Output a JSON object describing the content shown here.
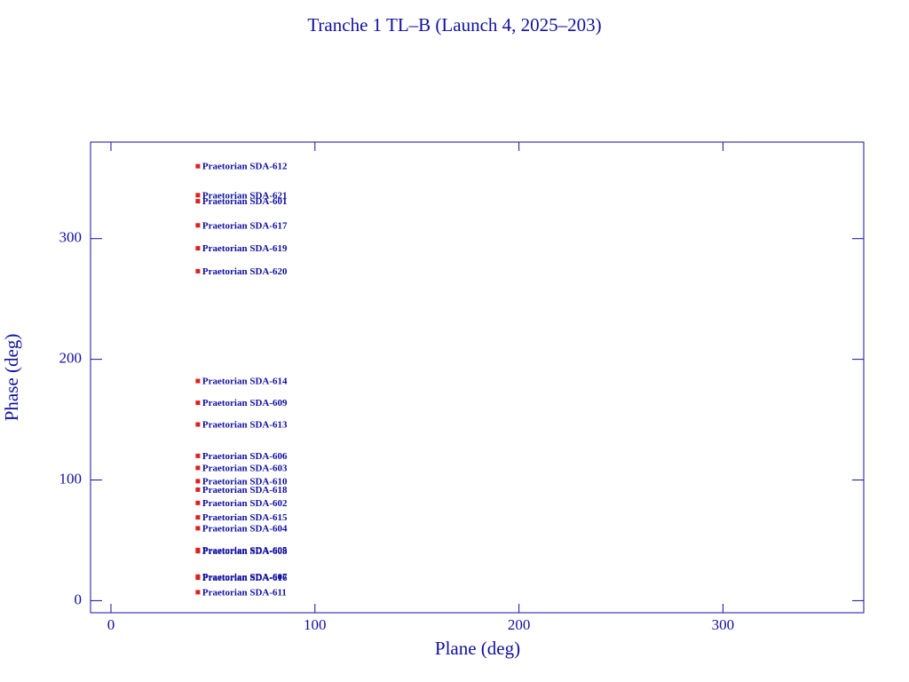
{
  "chart_data": {
    "type": "scatter",
    "title": "Tranche 1 TL–B (Launch 4, 2025–203)",
    "xlabel": "Plane (deg)",
    "ylabel": "Phase (deg)",
    "labels": [
      "Praetorian SDA-612",
      "Praetorian SDA-621",
      "Praetorian SDA-601",
      "Praetorian SDA-617",
      "Praetorian SDA-619",
      "Praetorian SDA-620",
      "Praetorian SDA-614",
      "Praetorian SDA-609",
      "Praetorian SDA-613",
      "Praetorian SDA-606",
      "Praetorian SDA-603",
      "Praetorian SDA-610",
      "Praetorian SDA-618",
      "Praetorian SDA-602",
      "Praetorian SDA-615",
      "Praetorian SDA-604",
      "Praetorian SDA-605",
      "Praetorian SDA-608",
      "Praetorian SDA-607",
      "Praetorian SDA-616",
      "Praetorian SDA-611"
    ],
    "x": [
      42.6,
      42.6,
      42.6,
      42.6,
      42.6,
      42.6,
      42.6,
      42.6,
      42.6,
      42.6,
      42.6,
      42.6,
      42.6,
      42.6,
      42.6,
      42.6,
      42.6,
      42.6,
      42.6,
      42.6,
      42.6
    ],
    "y": [
      360,
      336,
      331,
      311,
      292,
      273,
      182,
      164,
      146,
      120,
      110,
      99,
      92,
      81,
      69,
      60,
      42,
      41,
      20,
      19,
      7
    ],
    "color": "#e02020",
    "label_color": "#1010a0",
    "axis_color": "#1010a0",
    "xlim": [
      -10,
      369
    ],
    "ylim": [
      -10,
      380
    ],
    "xticks": [
      0,
      100,
      200,
      300
    ],
    "yticks": [
      0,
      100,
      200,
      300
    ]
  }
}
